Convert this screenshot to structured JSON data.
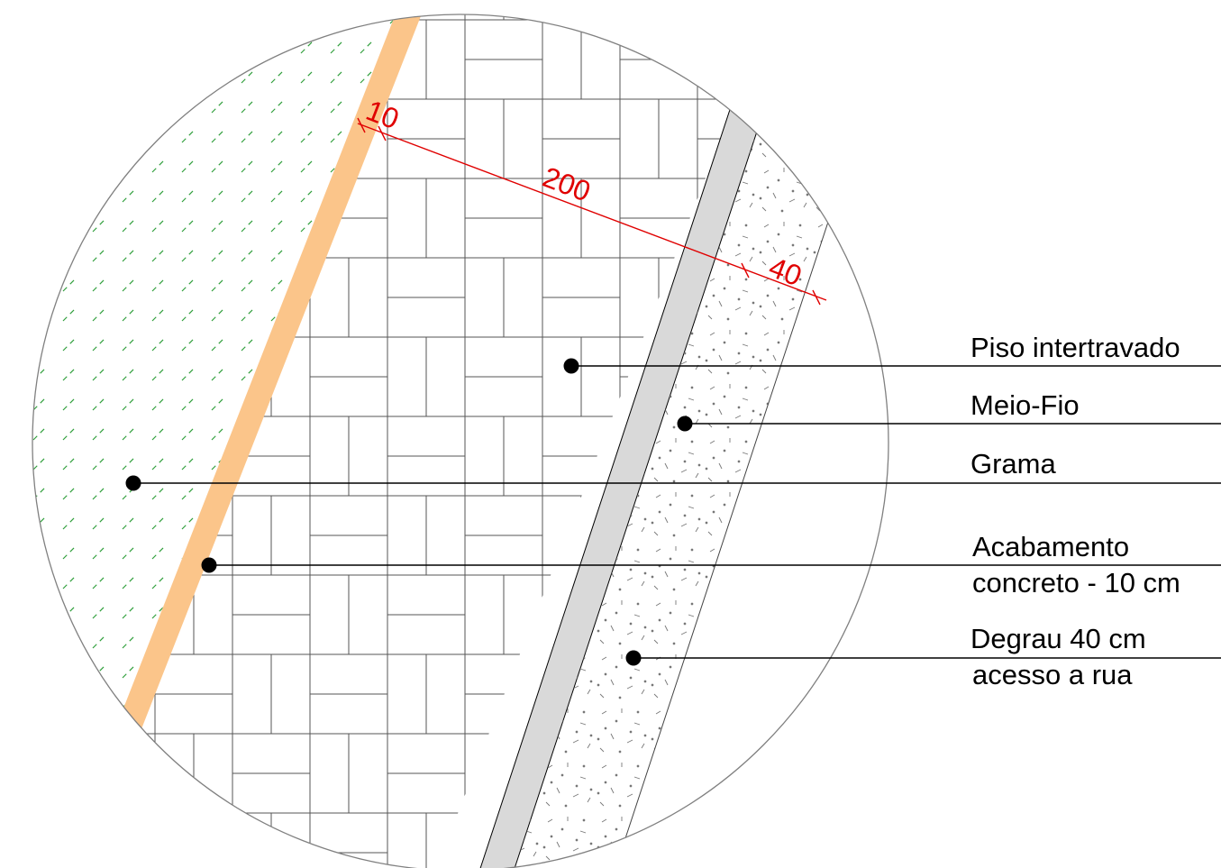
{
  "dimensions": {
    "d1": "10",
    "d2": "200",
    "d3": "40"
  },
  "labels": {
    "piso": "Piso intertravado",
    "meiofio": "Meio-Fio",
    "grama": "Grama",
    "acabamento_1": "Acabamento",
    "acabamento_2": "concreto - 10 cm",
    "degrau_1": "Degrau 40 cm",
    "degrau_2": "acesso a rua"
  },
  "colors": {
    "grass_hatch": "#2e9e3a",
    "concrete_finish": "#fbc58a",
    "curb": "#d9d9d9",
    "dimension": "#e00000",
    "outline": "#808080"
  }
}
